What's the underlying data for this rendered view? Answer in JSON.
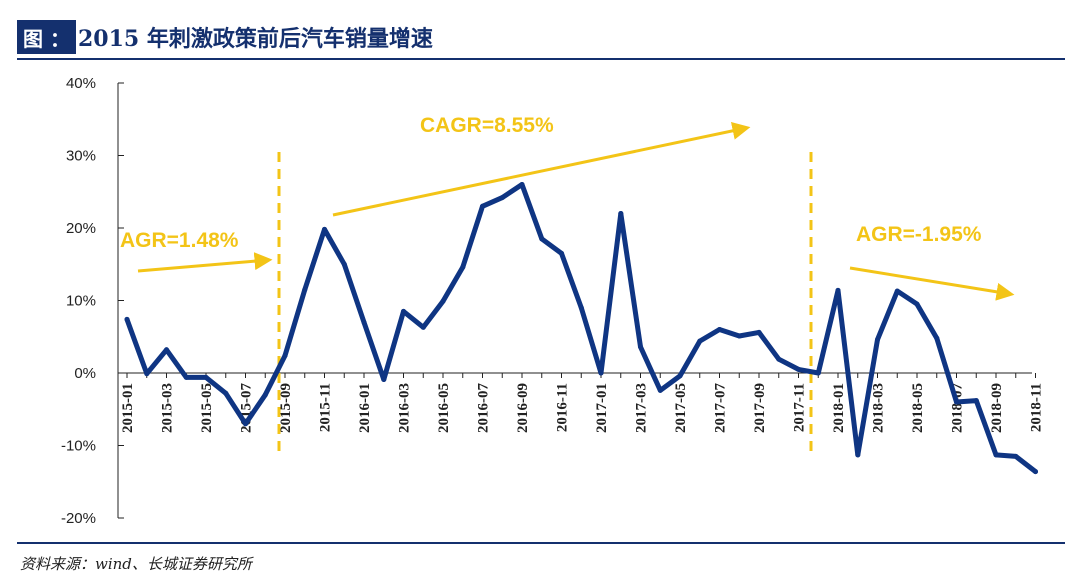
{
  "header": {
    "label": "图 ：",
    "title": "2015 年刺激政策前后汽车销量增速"
  },
  "footer": {
    "source": "资料来源：wind、长城证券研究所"
  },
  "colors": {
    "line": "#0f3583",
    "accent": "#f3c417",
    "header_bg": "#14306e"
  },
  "chart_data": {
    "type": "line",
    "title": "2015 年刺激政策前后汽车销量增速",
    "xlabel": "",
    "ylabel": "",
    "ylim": [
      -20,
      40
    ],
    "yticks": [
      40,
      30,
      20,
      10,
      0,
      -10,
      -20
    ],
    "ytick_labels": [
      "40%",
      "30%",
      "20%",
      "10%",
      "0%",
      "-10%",
      "-20%"
    ],
    "xtick_labels": [
      "2015-01",
      "2015-03",
      "2015-05",
      "2015-07",
      "2015-09",
      "2015-11",
      "2016-01",
      "2016-03",
      "2016-05",
      "2016-07",
      "2016-09",
      "2016-11",
      "2017-01",
      "2017-03",
      "2017-05",
      "2017-07",
      "2017-09",
      "2017-11",
      "2018-01",
      "2018-03",
      "2018-05",
      "2018-07",
      "2018-09",
      "2018-11"
    ],
    "series": [
      {
        "values": [
          7.4,
          -0.1,
          3.2,
          -0.6,
          -0.6,
          -2.8,
          -7.0,
          -3.0,
          2.4,
          11.5,
          19.8,
          15.0,
          7.0,
          -0.9,
          8.5,
          6.3,
          9.9,
          14.6,
          23.0,
          24.2,
          26.0,
          18.5,
          16.5,
          9.0,
          0.0,
          22.0,
          3.6,
          -2.4,
          -0.4,
          4.4,
          6.0,
          5.1,
          5.6,
          1.9,
          0.5,
          0.0,
          11.4,
          -11.3,
          4.6,
          11.3,
          9.5,
          4.8,
          -4.0,
          -3.8,
          -11.3,
          -11.5,
          -13.6
        ],
        "color": "#0f3583"
      }
    ],
    "annotations": [
      {
        "text": "AGR=1.48%"
      },
      {
        "text": "CAGR=8.55%"
      },
      {
        "text": "AGR=-1.95%"
      }
    ],
    "grid": false
  }
}
